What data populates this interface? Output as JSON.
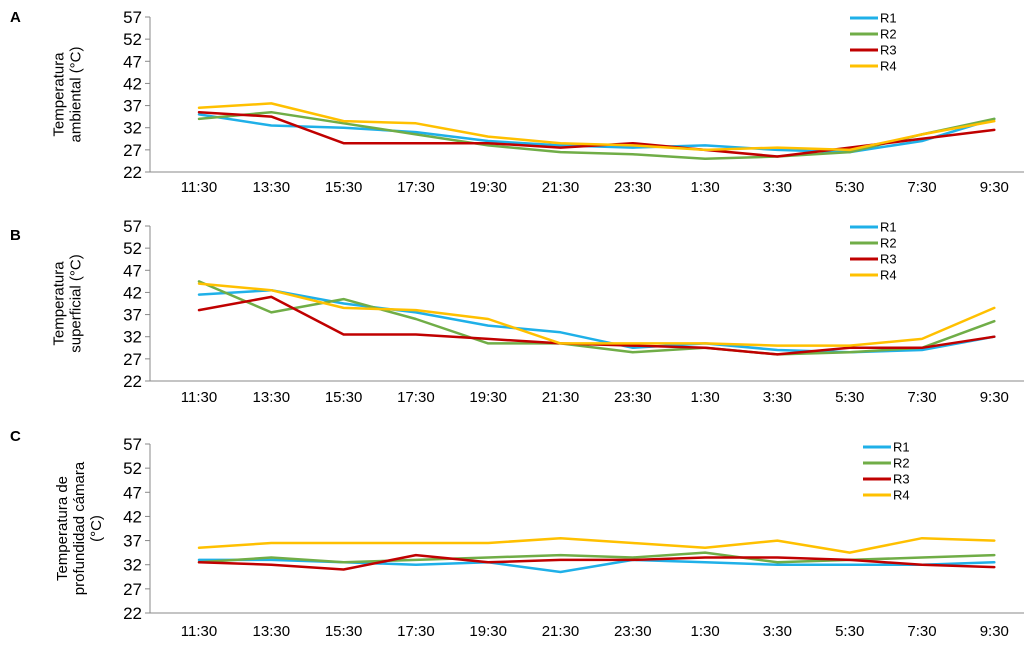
{
  "chart_data": [
    {
      "type": "line",
      "panel_letter": "A",
      "ylabel": [
        "Temperatura",
        "ambiental (°C)"
      ],
      "ylim": [
        22,
        57
      ],
      "yticks": [
        22,
        27,
        32,
        37,
        42,
        47,
        52,
        57
      ],
      "categories": [
        "11:30",
        "13:30",
        "15:30",
        "17:30",
        "19:30",
        "21:30",
        "23:30",
        "1:30",
        "3:30",
        "5:30",
        "7:30",
        "9:30"
      ],
      "legend_position": "top-right",
      "series": [
        {
          "name": "R1",
          "color": "#1FB0E8",
          "values": [
            35.0,
            32.5,
            32.0,
            31.0,
            29.0,
            28.0,
            27.5,
            28.0,
            27.0,
            26.5,
            29.0,
            34.0
          ]
        },
        {
          "name": "R2",
          "color": "#70AD47",
          "values": [
            34.0,
            35.5,
            33.0,
            30.5,
            28.0,
            26.5,
            26.0,
            25.0,
            25.5,
            26.5,
            30.5,
            34.0
          ]
        },
        {
          "name": "R3",
          "color": "#C00000",
          "values": [
            35.5,
            34.5,
            28.5,
            28.5,
            28.5,
            27.5,
            28.5,
            27.0,
            25.5,
            27.5,
            29.5,
            31.5
          ]
        },
        {
          "name": "R4",
          "color": "#FFC000",
          "values": [
            36.5,
            37.5,
            33.5,
            33.0,
            30.0,
            28.5,
            28.0,
            27.0,
            27.5,
            27.0,
            30.5,
            33.5
          ]
        }
      ]
    },
    {
      "type": "line",
      "panel_letter": "B",
      "ylabel": [
        "Temperatura",
        "superficial (°C)"
      ],
      "ylim": [
        22,
        57
      ],
      "yticks": [
        22,
        27,
        32,
        37,
        42,
        47,
        52,
        57
      ],
      "categories": [
        "11:30",
        "13:30",
        "15:30",
        "17:30",
        "19:30",
        "21:30",
        "23:30",
        "1:30",
        "3:30",
        "5:30",
        "7:30",
        "9:30"
      ],
      "legend_position": "top-right",
      "series": [
        {
          "name": "R1",
          "color": "#1FB0E8",
          "values": [
            41.5,
            42.5,
            39.5,
            37.5,
            34.5,
            33.0,
            29.5,
            30.5,
            29.0,
            28.5,
            29.0,
            32.0
          ]
        },
        {
          "name": "R2",
          "color": "#70AD47",
          "values": [
            44.5,
            37.5,
            40.5,
            36.0,
            30.5,
            30.5,
            28.5,
            29.5,
            28.0,
            28.5,
            29.5,
            35.5
          ]
        },
        {
          "name": "R3",
          "color": "#C00000",
          "values": [
            38.0,
            41.0,
            32.5,
            32.5,
            31.5,
            30.5,
            30.0,
            29.5,
            28.0,
            29.5,
            29.5,
            32.0
          ]
        },
        {
          "name": "R4",
          "color": "#FFC000",
          "values": [
            44.0,
            42.5,
            38.5,
            38.0,
            36.0,
            30.5,
            30.5,
            30.5,
            30.0,
            30.0,
            31.5,
            38.5
          ]
        }
      ]
    },
    {
      "type": "line",
      "panel_letter": "C",
      "ylabel": [
        "Temperatura de",
        "profundidad cámara",
        "(°C)"
      ],
      "ylim": [
        22,
        57
      ],
      "yticks": [
        22,
        27,
        32,
        37,
        42,
        47,
        52,
        57
      ],
      "categories": [
        "11:30",
        "13:30",
        "15:30",
        "17:30",
        "19:30",
        "21:30",
        "23:30",
        "1:30",
        "3:30",
        "5:30",
        "7:30",
        "9:30"
      ],
      "legend_position": "top-right",
      "series": [
        {
          "name": "R1",
          "color": "#1FB0E8",
          "values": [
            33.0,
            33.0,
            32.5,
            32.0,
            32.5,
            30.5,
            33.0,
            32.5,
            32.0,
            32.0,
            32.0,
            32.5
          ]
        },
        {
          "name": "R2",
          "color": "#70AD47",
          "values": [
            32.5,
            33.5,
            32.5,
            33.0,
            33.5,
            34.0,
            33.5,
            34.5,
            32.5,
            33.0,
            33.5,
            34.0
          ]
        },
        {
          "name": "R3",
          "color": "#C00000",
          "values": [
            32.5,
            32.0,
            31.0,
            34.0,
            32.5,
            33.0,
            33.0,
            33.5,
            33.5,
            33.0,
            32.0,
            31.5
          ]
        },
        {
          "name": "R4",
          "color": "#FFC000",
          "values": [
            35.5,
            36.5,
            36.5,
            36.5,
            36.5,
            37.5,
            36.5,
            35.5,
            37.0,
            34.5,
            37.5,
            37.0
          ]
        }
      ]
    }
  ]
}
